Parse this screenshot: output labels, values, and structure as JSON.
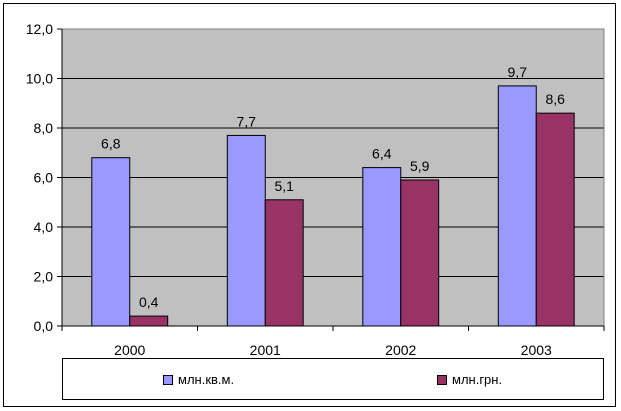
{
  "chart_data": {
    "type": "bar",
    "categories": [
      "2000",
      "2001",
      "2002",
      "2003"
    ],
    "series": [
      {
        "name": "млн.кв.м.",
        "values": [
          6.8,
          7.7,
          6.4,
          9.7
        ],
        "color": "#9999ff"
      },
      {
        "name": "млн.грн.",
        "values": [
          0.4,
          5.1,
          5.9,
          8.6
        ],
        "color": "#993366"
      }
    ],
    "data_labels": [
      [
        "6,8",
        "7,7",
        "6,4",
        "9,7"
      ],
      [
        "0,4",
        "5,1",
        "5,9",
        "8,6"
      ]
    ],
    "y_ticks": [
      "0,0",
      "2,0",
      "4,0",
      "6,0",
      "8,0",
      "10,0",
      "12,0"
    ],
    "ylim": [
      0,
      12
    ],
    "grid": true,
    "plot_background": "#c0c0c0",
    "legend": "bottom"
  }
}
